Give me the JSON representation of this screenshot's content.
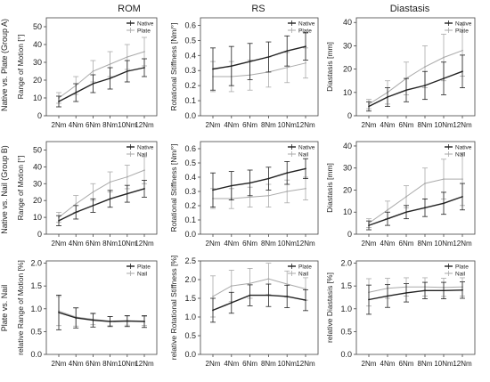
{
  "column_titles": [
    "ROM",
    "RS",
    "Diastasis"
  ],
  "row_labels": [
    "Native vs. Plate (Group A)",
    "Native vs. Nail (Group B)",
    "Plate vs. Nail"
  ],
  "colors": {
    "dark": "#222222",
    "light": "#aaaaaa"
  },
  "chart_data": [
    {
      "type": "line",
      "row": 0,
      "col": 0,
      "ylabel": "Range of Motion [°]",
      "categories": [
        "2Nm",
        "4Nm",
        "6Nm",
        "8Nm",
        "10Nm",
        "12Nm"
      ],
      "ylim": [
        0,
        55
      ],
      "yticks": [
        0,
        10,
        20,
        30,
        40,
        50
      ],
      "legend": [
        "Native",
        "Plate"
      ],
      "legend_position": "top-right",
      "series": [
        {
          "name": "Native",
          "color": "dark",
          "values": [
            8,
            13,
            18,
            21,
            25,
            27
          ],
          "err": [
            3,
            5,
            5,
            6,
            6,
            5
          ]
        },
        {
          "name": "Plate",
          "color": "light",
          "values": [
            10,
            17,
            25,
            29,
            33,
            36
          ],
          "err": [
            3,
            5,
            6,
            7,
            7,
            8
          ]
        }
      ]
    },
    {
      "type": "line",
      "row": 0,
      "col": 1,
      "ylabel": "Rotational Stiffness [Nm/°]",
      "categories": [
        "2Nm",
        "4Nm",
        "6Nm",
        "8Nm",
        "10Nm",
        "12Nm"
      ],
      "ylim": [
        0,
        0.65
      ],
      "yticks": [
        0,
        0.1,
        0.2,
        0.3,
        0.4,
        0.5,
        0.6
      ],
      "legend": [
        "Native",
        "Plate"
      ],
      "legend_position": "top-right",
      "series": [
        {
          "name": "Native",
          "color": "dark",
          "values": [
            0.31,
            0.33,
            0.36,
            0.39,
            0.43,
            0.46
          ],
          "err": [
            0.14,
            0.13,
            0.12,
            0.1,
            0.1,
            0.09
          ]
        },
        {
          "name": "Plate",
          "color": "light",
          "values": [
            0.26,
            0.26,
            0.27,
            0.29,
            0.32,
            0.35
          ],
          "err": [
            0.1,
            0.1,
            0.1,
            0.1,
            0.1,
            0.1
          ]
        }
      ]
    },
    {
      "type": "line",
      "row": 0,
      "col": 2,
      "ylabel": "Diastasis [mm]",
      "categories": [
        "2Nm",
        "4Nm",
        "6Nm",
        "8Nm",
        "10Nm",
        "12Nm"
      ],
      "ylim": [
        0,
        42
      ],
      "yticks": [
        0,
        10,
        20,
        30,
        40
      ],
      "legend": [
        "Native",
        "Plate"
      ],
      "legend_position": "top-right",
      "series": [
        {
          "name": "Native",
          "color": "dark",
          "values": [
            4,
            8,
            11,
            13,
            16,
            19
          ],
          "err": [
            2,
            4,
            5,
            6,
            7,
            7
          ]
        },
        {
          "name": "Plate",
          "color": "light",
          "values": [
            5,
            10,
            16,
            21,
            25,
            28
          ],
          "err": [
            2,
            5,
            7,
            9,
            10,
            11
          ]
        }
      ]
    },
    {
      "type": "line",
      "row": 1,
      "col": 0,
      "ylabel": "Range of Motion [°]",
      "categories": [
        "2Nm",
        "4Nm",
        "6Nm",
        "8Nm",
        "10Nm",
        "12Nm"
      ],
      "ylim": [
        0,
        55
      ],
      "yticks": [
        0,
        10,
        20,
        30,
        40,
        50
      ],
      "legend": [
        "Native",
        "Nail"
      ],
      "legend_position": "top-right",
      "series": [
        {
          "name": "Native",
          "color": "dark",
          "values": [
            8,
            13,
            17,
            21,
            24,
            27
          ],
          "err": [
            3,
            4,
            4,
            5,
            5,
            5
          ]
        },
        {
          "name": "Nail",
          "color": "light",
          "values": [
            10,
            18,
            25,
            31,
            34,
            38
          ],
          "err": [
            3,
            5,
            5,
            6,
            7,
            8
          ]
        }
      ]
    },
    {
      "type": "line",
      "row": 1,
      "col": 1,
      "ylabel": "Rotational Stiffness [Nm/°]",
      "categories": [
        "2Nm",
        "4Nm",
        "6Nm",
        "8Nm",
        "10Nm",
        "12Nm"
      ],
      "ylim": [
        0,
        0.65
      ],
      "yticks": [
        0,
        0.1,
        0.2,
        0.3,
        0.4,
        0.5,
        0.6
      ],
      "legend": [
        "Native",
        "Nail"
      ],
      "legend_position": "top-right",
      "series": [
        {
          "name": "Native",
          "color": "dark",
          "values": [
            0.31,
            0.34,
            0.36,
            0.39,
            0.43,
            0.46
          ],
          "err": [
            0.12,
            0.1,
            0.09,
            0.08,
            0.08,
            0.07
          ]
        },
        {
          "name": "Nail",
          "color": "light",
          "values": [
            0.25,
            0.25,
            0.26,
            0.27,
            0.3,
            0.32
          ],
          "err": [
            0.07,
            0.07,
            0.07,
            0.08,
            0.08,
            0.08
          ]
        }
      ]
    },
    {
      "type": "line",
      "row": 1,
      "col": 2,
      "ylabel": "Diastasis [mm]",
      "categories": [
        "2Nm",
        "4Nm",
        "6Nm",
        "8Nm",
        "10Nm",
        "12Nm"
      ],
      "ylim": [
        0,
        42
      ],
      "yticks": [
        0,
        10,
        20,
        30,
        40
      ],
      "legend": [
        "Native",
        "Nail"
      ],
      "legend_position": "top-right",
      "series": [
        {
          "name": "Native",
          "color": "dark",
          "values": [
            4,
            7,
            10,
            12,
            14,
            17
          ],
          "err": [
            2,
            3,
            3,
            4,
            5,
            6
          ]
        },
        {
          "name": "Nail",
          "color": "light",
          "values": [
            5,
            11,
            17,
            23,
            25,
            25
          ],
          "err": [
            2,
            4,
            5,
            7,
            9,
            12
          ]
        }
      ]
    },
    {
      "type": "line",
      "row": 2,
      "col": 0,
      "ylabel": "relative Range of Motion [%]",
      "categories": [
        "2Nm",
        "4Nm",
        "6Nm",
        "8Nm",
        "10Nm",
        "12Nm"
      ],
      "ylim": [
        0,
        2.05
      ],
      "yticks": [
        0,
        0.5,
        1.0,
        1.5,
        2.0
      ],
      "legend": [
        "Plate",
        "Nail"
      ],
      "legend_position": "top-right",
      "series": [
        {
          "name": "Plate",
          "color": "dark",
          "values": [
            0.92,
            0.8,
            0.75,
            0.72,
            0.73,
            0.72
          ],
          "err": [
            0.38,
            0.22,
            0.15,
            0.11,
            0.12,
            0.13
          ]
        },
        {
          "name": "Nail",
          "color": "light",
          "values": [
            0.95,
            0.82,
            0.77,
            0.73,
            0.74,
            0.73
          ],
          "err": [
            0.32,
            0.2,
            0.12,
            0.1,
            0.1,
            0.1
          ]
        }
      ]
    },
    {
      "type": "line",
      "row": 2,
      "col": 1,
      "ylabel": "relative Rotational Stiffness [%]",
      "categories": [
        "2Nm",
        "4Nm",
        "6Nm",
        "8Nm",
        "10Nm",
        "12Nm"
      ],
      "ylim": [
        0,
        2.5
      ],
      "yticks": [
        0,
        0.5,
        1.0,
        1.5,
        2.0,
        2.5
      ],
      "legend": [
        "Plate",
        "Nail"
      ],
      "legend_position": "top-right",
      "series": [
        {
          "name": "Plate",
          "color": "dark",
          "values": [
            1.18,
            1.38,
            1.58,
            1.58,
            1.55,
            1.45
          ],
          "err": [
            0.32,
            0.28,
            0.28,
            0.3,
            0.3,
            0.28
          ]
        },
        {
          "name": "Nail",
          "color": "light",
          "values": [
            1.55,
            1.83,
            1.9,
            2.02,
            1.88,
            1.75
          ],
          "err": [
            0.55,
            0.42,
            0.4,
            0.42,
            0.35,
            0.3
          ]
        }
      ]
    },
    {
      "type": "line",
      "row": 2,
      "col": 2,
      "ylabel": "relative Diastasis [%]",
      "categories": [
        "2Nm",
        "4Nm",
        "6Nm",
        "8Nm",
        "10Nm",
        "12Nm"
      ],
      "ylim": [
        0,
        2.05
      ],
      "yticks": [
        0,
        0.5,
        1.0,
        1.5,
        2.0
      ],
      "legend": [
        "Plate",
        "Nail"
      ],
      "legend_position": "top-right",
      "series": [
        {
          "name": "Plate",
          "color": "dark",
          "values": [
            1.2,
            1.28,
            1.35,
            1.4,
            1.4,
            1.41
          ],
          "err": [
            0.32,
            0.25,
            0.2,
            0.18,
            0.18,
            0.18
          ]
        },
        {
          "name": "Nail",
          "color": "light",
          "values": [
            1.36,
            1.45,
            1.48,
            1.48,
            1.47,
            1.48
          ],
          "err": [
            0.3,
            0.22,
            0.2,
            0.2,
            0.2,
            0.2
          ]
        }
      ]
    }
  ]
}
